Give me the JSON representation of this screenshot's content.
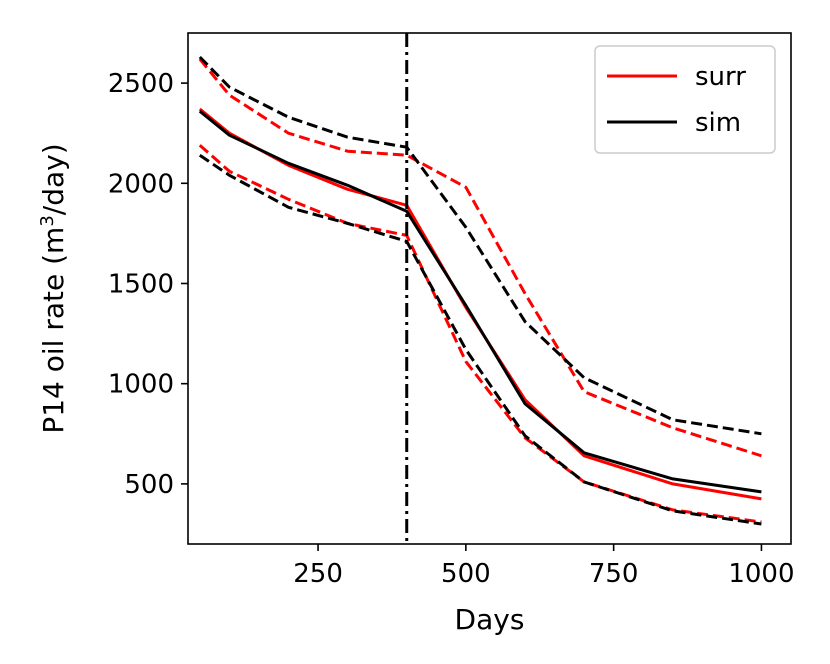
{
  "chart_data": {
    "type": "line",
    "xlabel": "Days",
    "ylabel_main": "P14 oil rate (m",
    "ylabel_sup": "3",
    "ylabel_tail": "/day)",
    "xlim": [
      30,
      1050
    ],
    "ylim": [
      200,
      2750
    ],
    "x_ticks": [
      250,
      500,
      750,
      1000
    ],
    "x_tick_labels": [
      "250",
      "500",
      "750",
      "1000"
    ],
    "y_ticks": [
      500,
      1000,
      1500,
      2000,
      2500
    ],
    "y_tick_labels": [
      "500",
      "1000",
      "1500",
      "2000",
      "2500"
    ],
    "vline_x": 400,
    "x": [
      50,
      100,
      200,
      300,
      400,
      500,
      600,
      700,
      850,
      1000
    ],
    "series": [
      {
        "name": "surr",
        "role": "mean",
        "color": "#ff0000",
        "dash": "solid",
        "values": [
          2370,
          2250,
          2090,
          1970,
          1890,
          1380,
          920,
          640,
          500,
          425
        ]
      },
      {
        "name": "surr-upper",
        "role": "bound",
        "color": "#ff0000",
        "dash": "dashed",
        "values": [
          2620,
          2440,
          2250,
          2160,
          2140,
          1980,
          1450,
          960,
          780,
          640
        ]
      },
      {
        "name": "surr-lower",
        "role": "bound",
        "color": "#ff0000",
        "dash": "dashed",
        "values": [
          2190,
          2060,
          1920,
          1800,
          1740,
          1110,
          730,
          510,
          370,
          310
        ]
      },
      {
        "name": "sim",
        "role": "mean",
        "color": "#000000",
        "dash": "solid",
        "values": [
          2360,
          2240,
          2100,
          1990,
          1860,
          1390,
          900,
          655,
          525,
          460
        ]
      },
      {
        "name": "sim-upper",
        "role": "bound",
        "color": "#000000",
        "dash": "dashed",
        "values": [
          2630,
          2480,
          2330,
          2230,
          2180,
          1780,
          1310,
          1030,
          820,
          750
        ]
      },
      {
        "name": "sim-lower",
        "role": "bound",
        "color": "#000000",
        "dash": "dashed",
        "values": [
          2140,
          2040,
          1880,
          1800,
          1710,
          1170,
          740,
          510,
          365,
          300
        ]
      }
    ],
    "legend": {
      "position": "top-right",
      "entries": [
        {
          "label": "surr",
          "color": "#ff0000"
        },
        {
          "label": "sim",
          "color": "#000000"
        }
      ]
    }
  }
}
